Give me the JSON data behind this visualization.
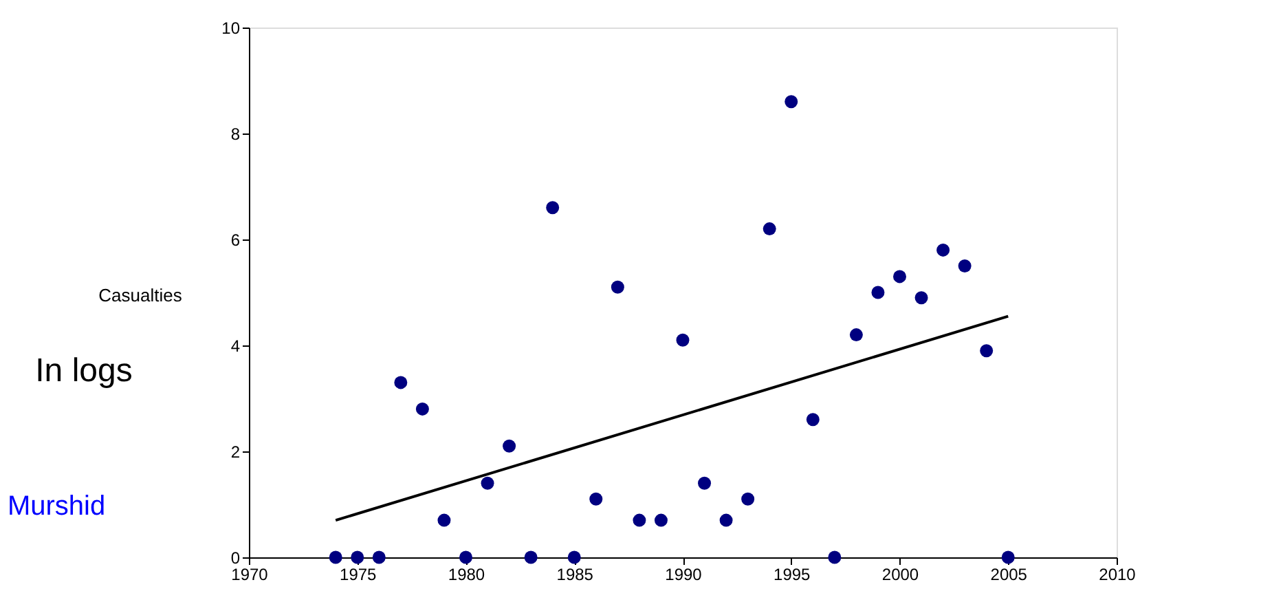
{
  "chart_data": {
    "type": "scatter",
    "ylabel": "Casualties",
    "annotations": [
      "In logs",
      "Murshid"
    ],
    "x": [
      1974,
      1975,
      1976,
      1977,
      1978,
      1979,
      1980,
      1981,
      1982,
      1983,
      1984,
      1985,
      1986,
      1987,
      1988,
      1989,
      1990,
      1991,
      1992,
      1993,
      1994,
      1995,
      1996,
      1997,
      1998,
      1999,
      2000,
      2001,
      2002,
      2003,
      2004,
      2005
    ],
    "series": [
      {
        "color": "#000080",
        "marker": "circle",
        "values": [
          0,
          0,
          0,
          3.3,
          2.8,
          0.7,
          0,
          1.4,
          2.1,
          0,
          6.6,
          0,
          1.1,
          5.1,
          0.7,
          0.7,
          4.1,
          1.4,
          0.7,
          1.1,
          6.2,
          8.6,
          2.6,
          0,
          4.2,
          5.0,
          5.3,
          4.9,
          5.8,
          5.5,
          3.9,
          0
        ]
      },
      {
        "type": "line",
        "color": "#000000",
        "x": [
          1974,
          2005
        ],
        "values": [
          0.7,
          4.55
        ]
      }
    ],
    "xlim": [
      1970,
      2010
    ],
    "xticks": [
      1970,
      1975,
      1980,
      1985,
      1990,
      1995,
      2000,
      2005,
      2010
    ],
    "ylim": [
      0,
      10
    ],
    "yticks": [
      0,
      2,
      4,
      6,
      8,
      10
    ],
    "grid": false
  }
}
